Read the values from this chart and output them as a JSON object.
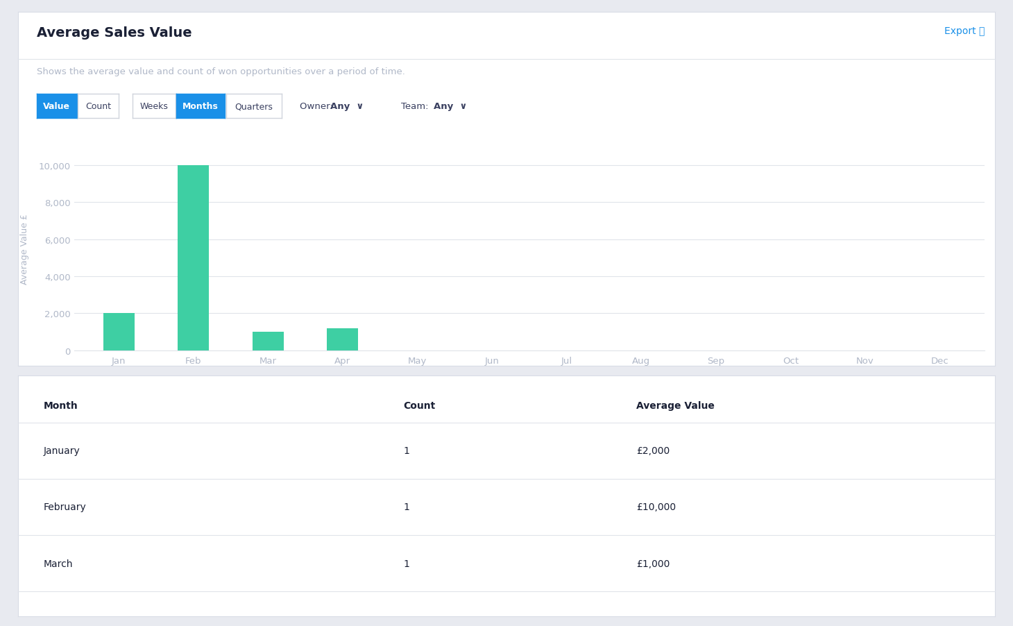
{
  "title": "Average Sales Value",
  "export_text": "Export ⤓",
  "subtitle": "Shows the average value and count of won opportunities over a period of time.",
  "ylabel": "Average Value £",
  "months": [
    "Jan",
    "Feb",
    "Mar",
    "Apr",
    "May",
    "Jun",
    "Jul",
    "Aug",
    "Sep",
    "Oct",
    "Nov",
    "Dec"
  ],
  "values": [
    2000,
    10000,
    1000,
    1200,
    0,
    0,
    0,
    0,
    0,
    0,
    0,
    0
  ],
  "bar_color": "#3ecfa3",
  "ylim": [
    0,
    11000
  ],
  "yticks": [
    0,
    2000,
    4000,
    6000,
    8000,
    10000
  ],
  "bg_color": "#ffffff",
  "outer_bg": "#e8eaf0",
  "grid_color": "#e0e4ea",
  "axis_text_color": "#b0b8c8",
  "ylabel_color": "#b0b8c8",
  "title_color": "#1a2035",
  "subtitle_color": "#b0b8c8",
  "table_months": [
    "January",
    "February",
    "March"
  ],
  "table_counts": [
    "1",
    "1",
    "1"
  ],
  "table_values": [
    "£2,000",
    "£10,000",
    "£1,000"
  ],
  "table_header": [
    "Month",
    "Count",
    "Average Value"
  ],
  "btn_blue_color": "#1a90e8",
  "btn_white_bg": "#ffffff",
  "btn_border_color": "#d0d4dc",
  "btn_text_dark": "#3a4060",
  "owner_label": "Owner: ",
  "owner_val": "Any",
  "team_label": "Team: ",
  "team_val": "Any"
}
